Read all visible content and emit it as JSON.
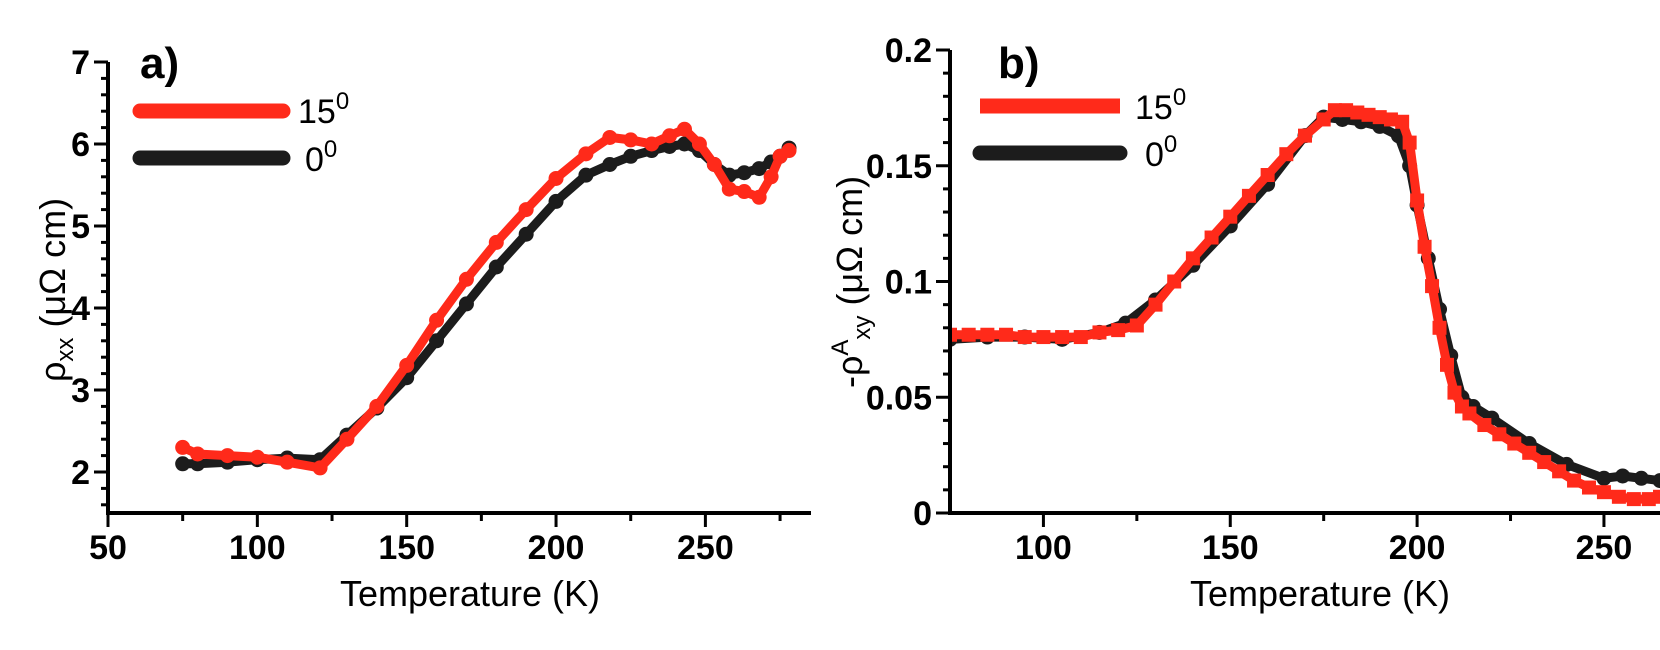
{
  "chart_data": [
    {
      "type": "line",
      "panel_label": "a)",
      "title": "",
      "xlabel": "Temperature (K)",
      "ylabel_main": "ρ",
      "ylabel_sub": "xx",
      "ylabel_rest": " (μΩ cm)",
      "xlim": [
        50,
        280
      ],
      "ylim": [
        1.5,
        7
      ],
      "xticks": [
        50,
        100,
        150,
        200,
        250
      ],
      "yticks": [
        2,
        3,
        4,
        5,
        6,
        7
      ],
      "legend_position": "top-left",
      "series": [
        {
          "name": "15",
          "sup": "0",
          "color": "#ff2a1a",
          "marker": "circle",
          "x": [
            75,
            80,
            90,
            100,
            110,
            121,
            130,
            140,
            150,
            160,
            170,
            180,
            190,
            200,
            210,
            218,
            225,
            232,
            238,
            243,
            248,
            253,
            258,
            263,
            268,
            272,
            275,
            278
          ],
          "y": [
            2.3,
            2.22,
            2.2,
            2.18,
            2.12,
            2.05,
            2.4,
            2.8,
            3.3,
            3.85,
            4.35,
            4.8,
            5.2,
            5.58,
            5.88,
            6.08,
            6.05,
            6.0,
            6.1,
            6.18,
            6.0,
            5.75,
            5.45,
            5.42,
            5.35,
            5.6,
            5.85,
            5.92
          ]
        },
        {
          "name": "0",
          "sup": "0",
          "color": "#1c1c1c",
          "marker": "circle",
          "x": [
            75,
            80,
            90,
            100,
            110,
            121,
            130,
            140,
            150,
            160,
            170,
            180,
            190,
            200,
            210,
            218,
            225,
            232,
            238,
            243,
            248,
            253,
            258,
            263,
            268,
            272,
            275,
            278
          ],
          "y": [
            2.1,
            2.1,
            2.12,
            2.15,
            2.17,
            2.15,
            2.45,
            2.78,
            3.15,
            3.6,
            4.05,
            4.5,
            4.9,
            5.3,
            5.62,
            5.75,
            5.85,
            5.92,
            5.97,
            6.0,
            5.92,
            5.75,
            5.62,
            5.65,
            5.7,
            5.78,
            5.85,
            5.95
          ]
        }
      ]
    },
    {
      "type": "scatter",
      "panel_label": "b)",
      "title": "",
      "xlabel": "Temperature (K)",
      "ylabel_main": "-ρ",
      "ylabel_sup": "A",
      "ylabel_sub": "xy",
      "ylabel_rest": " (μΩ cm)",
      "xlim": [
        75,
        265
      ],
      "ylim": [
        0,
        0.2
      ],
      "xticks": [
        100,
        150,
        200,
        250
      ],
      "yticks": [
        0,
        0.05,
        0.1,
        0.15,
        0.2
      ],
      "ytick_labels": [
        "0",
        "0.05",
        "0.1",
        "0.15",
        "0.2"
      ],
      "legend_position": "top-left",
      "series": [
        {
          "name": "15",
          "sup": "0",
          "color": "#ff2a1a",
          "marker": "square",
          "x": [
            75,
            80,
            85,
            90,
            95,
            100,
            105,
            110,
            115,
            120,
            125,
            130,
            135,
            140,
            145,
            150,
            155,
            160,
            165,
            170,
            175,
            178,
            181,
            184,
            187,
            190,
            193,
            196,
            198,
            200,
            202,
            204,
            206,
            208,
            210,
            212,
            214,
            218,
            222,
            226,
            230,
            234,
            238,
            242,
            246,
            250,
            254,
            258,
            262,
            265
          ],
          "y": [
            0.077,
            0.077,
            0.077,
            0.077,
            0.076,
            0.076,
            0.076,
            0.076,
            0.078,
            0.079,
            0.081,
            0.09,
            0.1,
            0.11,
            0.119,
            0.128,
            0.137,
            0.146,
            0.155,
            0.163,
            0.17,
            0.174,
            0.174,
            0.173,
            0.172,
            0.171,
            0.17,
            0.169,
            0.16,
            0.135,
            0.115,
            0.098,
            0.08,
            0.064,
            0.052,
            0.046,
            0.043,
            0.038,
            0.034,
            0.03,
            0.026,
            0.022,
            0.018,
            0.014,
            0.011,
            0.009,
            0.007,
            0.006,
            0.006,
            0.007
          ]
        },
        {
          "name": "0",
          "sup": "0",
          "color": "#1c1c1c",
          "marker": "circle",
          "x": [
            75,
            85,
            95,
            105,
            115,
            122,
            130,
            140,
            150,
            160,
            170,
            175,
            180,
            185,
            190,
            195,
            198,
            200,
            203,
            206,
            209,
            212,
            215,
            220,
            230,
            240,
            250,
            255,
            260,
            265
          ],
          "y": [
            0.075,
            0.076,
            0.076,
            0.075,
            0.078,
            0.082,
            0.092,
            0.107,
            0.124,
            0.142,
            0.163,
            0.171,
            0.17,
            0.169,
            0.167,
            0.163,
            0.15,
            0.133,
            0.11,
            0.088,
            0.068,
            0.05,
            0.046,
            0.041,
            0.03,
            0.021,
            0.015,
            0.016,
            0.015,
            0.014
          ]
        }
      ]
    }
  ]
}
